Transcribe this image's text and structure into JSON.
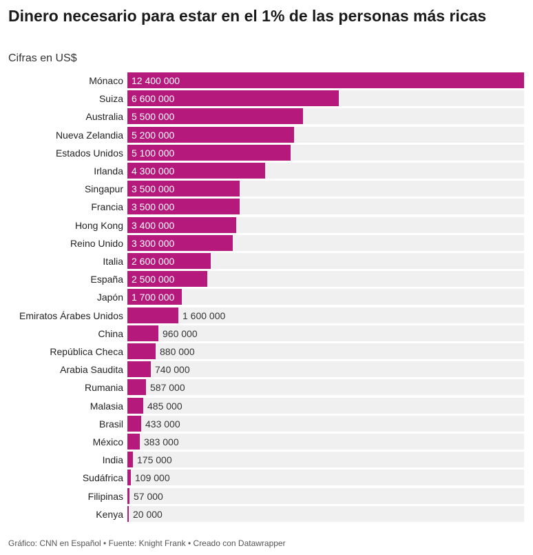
{
  "header": {
    "title": "Dinero necesario para estar en el 1% de las personas más ricas",
    "subtitle": "Cifras en US$"
  },
  "chart_data": {
    "type": "bar",
    "orientation": "horizontal",
    "title": "Dinero necesario para estar en el 1% de las personas más ricas",
    "subtitle": "Cifras en US$",
    "xlabel": "",
    "ylabel": "",
    "xlim": [
      0,
      12400000
    ],
    "grid": false,
    "bar_color": "#b4197b",
    "track_color": "#f0f0f0",
    "categories": [
      "Mónaco",
      "Suiza",
      "Australia",
      "Nueva Zelandia",
      "Estados Unidos",
      "Irlanda",
      "Singapur",
      "Francia",
      "Hong Kong",
      "Reino Unido",
      "Italia",
      "España",
      "Japón",
      "Emiratos Árabes Unidos",
      "China",
      "República Checa",
      "Arabia Saudita",
      "Rumania",
      "Malasia",
      "Brasil",
      "México",
      "India",
      "Sudáfrica",
      "Filipinas",
      "Kenya"
    ],
    "values": [
      12400000,
      6600000,
      5500000,
      5200000,
      5100000,
      4300000,
      3500000,
      3500000,
      3400000,
      3300000,
      2600000,
      2500000,
      1700000,
      1600000,
      960000,
      880000,
      740000,
      587000,
      485000,
      433000,
      383000,
      175000,
      109000,
      57000,
      20000
    ],
    "value_labels": [
      "12 400 000",
      "6 600 000",
      "5 500 000",
      "5 200 000",
      "5 100 000",
      "4 300 000",
      "3 500 000",
      "3 500 000",
      "3 400 000",
      "3 300 000",
      "2 600 000",
      "2 500 000",
      "1 700 000",
      "1 600 000",
      "960 000",
      "880 000",
      "740 000",
      "587 000",
      "485 000",
      "433 000",
      "383 000",
      "175 000",
      "109 000",
      "57 000",
      "20 000"
    ]
  },
  "footer": {
    "text": "Gráfico: CNN en Español • Fuente: Knight Frank • Creado con Datawrapper"
  }
}
